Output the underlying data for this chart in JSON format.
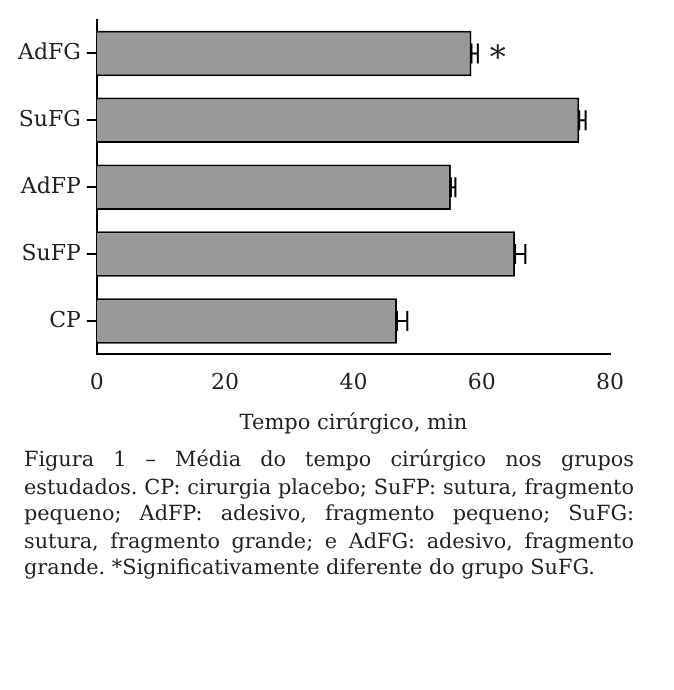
{
  "chart_data": {
    "type": "bar",
    "orientation": "horizontal",
    "xlabel": "Tempo cirúrgico, min",
    "categories": [
      "AdFG",
      "SuFG",
      "AdFP",
      "SuFP",
      "CP"
    ],
    "values": [
      58.4,
      75.2,
      55.2,
      65.2,
      46.8
    ],
    "errors": [
      [
        58.4,
        59.4
      ],
      [
        75.2,
        76.2
      ],
      [
        55.2,
        55.9
      ],
      [
        65.2,
        66.8
      ],
      [
        46.8,
        48.4
      ]
    ],
    "color": "#999999",
    "xlim": [
      0,
      80
    ],
    "xticks": [
      0,
      20,
      40,
      60,
      80
    ],
    "grid": false,
    "legend": false,
    "value_labels": [
      "*",
      null,
      null,
      null,
      null
    ],
    "annotations": [
      "Figura 1 – Média do tempo cirúrgico nos grupos estudados. CP: cirurgia placebo; SuFP: sutura, fragmento pequeno; AdFP: adesivo, fragmento pequeno; SuFG: sutura, fragmento grande; e AdFG: adesivo, fragmento grande. *Significativamente diferente do grupo SuFG."
    ]
  }
}
